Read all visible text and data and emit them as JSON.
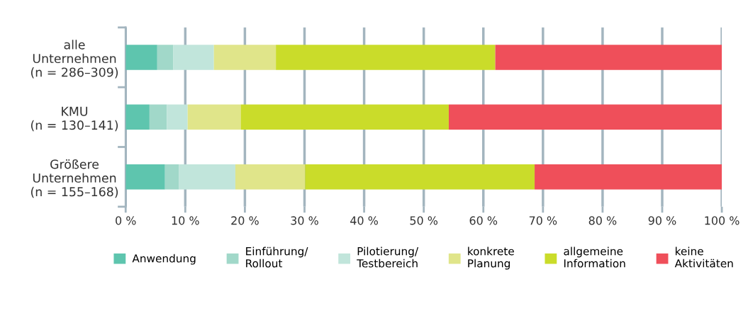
{
  "chart_data": {
    "type": "bar",
    "orientation": "horizontal",
    "stacked": true,
    "categories": [
      "alle\nUnternehmen\n(n = 286–309)",
      "KMU\n(n = 130–141)",
      "Größere\nUnternehmen\n(n = 155–168)"
    ],
    "series": [
      {
        "name": "Anwendung",
        "color": "#5ec5ae",
        "values": [
          5.3,
          4.0,
          6.6
        ]
      },
      {
        "name": "Einführung/\nRollout",
        "color": "#a1d8c9",
        "values": [
          2.7,
          2.9,
          2.3
        ]
      },
      {
        "name": "Pilotierung/\nTestbereich",
        "color": "#c1e5db",
        "values": [
          6.8,
          3.5,
          9.5
        ]
      },
      {
        "name": "konkrete\nPlanung",
        "color": "#e0e58a",
        "values": [
          10.4,
          8.9,
          11.7
        ]
      },
      {
        "name": "allgemeine\nInformation",
        "color": "#cadc2a",
        "values": [
          36.8,
          34.9,
          38.5
        ]
      },
      {
        "name": "keine\nAktivitäten",
        "color": "#ef4f5a",
        "values": [
          38.0,
          45.8,
          31.4
        ]
      }
    ],
    "xlim": [
      0,
      100
    ],
    "xticks": [
      {
        "value": 0,
        "label": "0 %"
      },
      {
        "value": 10,
        "label": "10 %"
      },
      {
        "value": 20,
        "label": "20 %"
      },
      {
        "value": 30,
        "label": "30 %"
      },
      {
        "value": 40,
        "label": "40 %"
      },
      {
        "value": 50,
        "label": "50 %"
      },
      {
        "value": 60,
        "label": "60 %"
      },
      {
        "value": 70,
        "label": "70 %"
      },
      {
        "value": 80,
        "label": "80 %"
      },
      {
        "value": 90,
        "label": "90 %"
      },
      {
        "value": 100,
        "label": "100 %"
      }
    ],
    "grid": "x",
    "legend": "bottom"
  }
}
